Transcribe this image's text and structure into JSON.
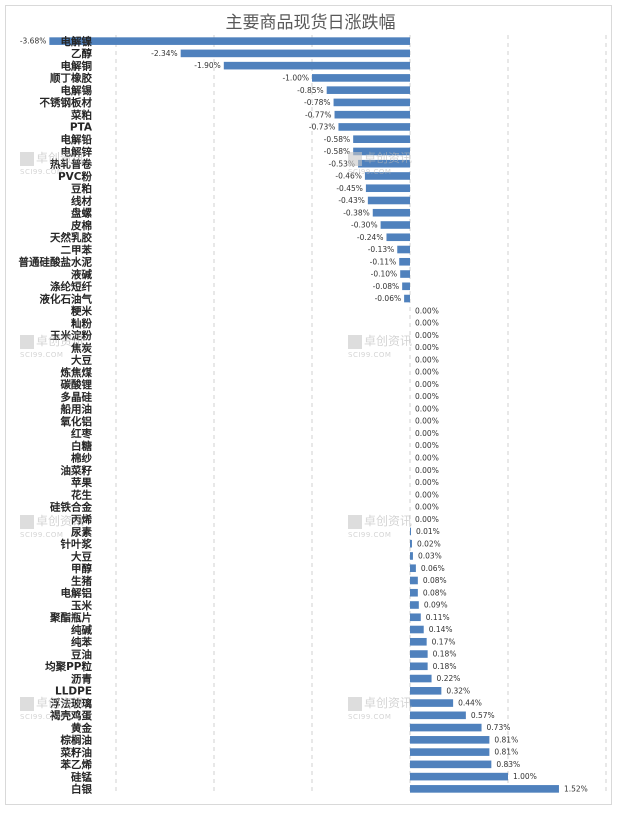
{
  "chart_data": {
    "type": "bar",
    "orientation": "horizontal",
    "title": "主要商品现货日涨跌幅",
    "xlim": [
      -4.0,
      2.0
    ],
    "grid": true,
    "categories": [
      "电解镍",
      "乙醇",
      "电解铜",
      "顺丁橡胶",
      "电解锡",
      "不锈钢板材",
      "菜粕",
      "PTA",
      "电解铅",
      "电解锌",
      "热轧普卷",
      "PVC粉",
      "豆粕",
      "线材",
      "盘螺",
      "皮棉",
      "天然乳胶",
      "二甲苯",
      "普通硅酸盐水泥",
      "液碱",
      "涤纶短纤",
      "液化石油气",
      "粳米",
      "籼粉",
      "玉米淀粉",
      "焦炭",
      "大豆",
      "炼焦煤",
      "碳酸锂",
      "多晶硅",
      "船用油",
      "氧化铝",
      "红枣",
      "白糖",
      "棉纱",
      "油菜籽",
      "苹果",
      "花生",
      "硅铁合金",
      "丙烯",
      "尿素",
      "针叶浆",
      "大豆",
      "甲醇",
      "生猪",
      "电解铝",
      "玉米",
      "聚酯瓶片",
      "纯碱",
      "纯苯",
      "豆油",
      "均聚PP粒",
      "沥青",
      "LLDPE",
      "浮法玻璃",
      "褐壳鸡蛋",
      "黄金",
      "棕榈油",
      "菜籽油",
      "苯乙烯",
      "硅锰",
      "白银"
    ],
    "values": [
      -3.68,
      -2.34,
      -1.9,
      -1.0,
      -0.85,
      -0.78,
      -0.77,
      -0.73,
      -0.58,
      -0.58,
      -0.53,
      -0.46,
      -0.45,
      -0.43,
      -0.38,
      -0.3,
      -0.24,
      -0.13,
      -0.11,
      -0.1,
      -0.08,
      -0.06,
      0.0,
      0.0,
      0.0,
      0.0,
      0.0,
      0.0,
      0.0,
      0.0,
      0.0,
      0.0,
      0.0,
      0.0,
      0.0,
      0.0,
      0.0,
      0.0,
      0.0,
      0.0,
      0.01,
      0.02,
      0.03,
      0.06,
      0.08,
      0.08,
      0.09,
      0.11,
      0.14,
      0.17,
      0.18,
      0.18,
      0.22,
      0.32,
      0.44,
      0.57,
      0.73,
      0.81,
      0.81,
      0.83,
      1.0,
      1.52
    ],
    "value_labels": [
      "-3.68%",
      "-2.34%",
      "-1.90%",
      "-1.00%",
      "-0.85%",
      "-0.78%",
      "-0.77%",
      "-0.73%",
      "-0.58%",
      "-0.58%",
      "-0.53%",
      "-0.46%",
      "-0.45%",
      "-0.43%",
      "-0.38%",
      "-0.30%",
      "-0.24%",
      "-0.13%",
      "-0.11%",
      "-0.10%",
      "-0.08%",
      "-0.06%",
      "0.00%",
      "0.00%",
      "0.00%",
      "0.00%",
      "0.00%",
      "0.00%",
      "0.00%",
      "0.00%",
      "0.00%",
      "0.00%",
      "0.00%",
      "0.00%",
      "0.00%",
      "0.00%",
      "0.00%",
      "0.00%",
      "0.00%",
      "0.00%",
      "0.01%",
      "0.02%",
      "0.03%",
      "0.06%",
      "0.08%",
      "0.08%",
      "0.09%",
      "0.11%",
      "0.14%",
      "0.17%",
      "0.18%",
      "0.18%",
      "0.22%",
      "0.32%",
      "0.44%",
      "0.57%",
      "0.73%",
      "0.81%",
      "0.81%",
      "0.83%",
      "1.00%",
      "1.52%"
    ],
    "bar_color": "#4f81bd"
  },
  "watermark": {
    "text": "卓创资讯",
    "subtext": "SCI99.COM"
  }
}
